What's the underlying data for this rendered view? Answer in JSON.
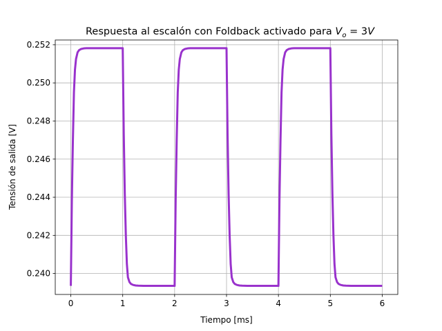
{
  "chart_data": {
    "type": "line",
    "title_text": "Respuesta al escalón con Foldback activado para ",
    "title_math": {
      "var": "V",
      "sub": "o",
      "rest": " = 3",
      "unit": "V"
    },
    "xlabel": "Tiempo [ms]",
    "ylabel": "Tensión de salida [V]",
    "xlim": [
      -0.3,
      6.3
    ],
    "ylim": [
      0.2389,
      0.25225
    ],
    "xticks": [
      0,
      1,
      2,
      3,
      4,
      5,
      6
    ],
    "xtick_labels": [
      "0",
      "1",
      "2",
      "3",
      "4",
      "5",
      "6"
    ],
    "yticks": [
      0.24,
      0.242,
      0.244,
      0.246,
      0.248,
      0.25,
      0.252
    ],
    "ytick_labels": [
      "0.240",
      "0.242",
      "0.244",
      "0.246",
      "0.248",
      "0.250",
      "0.252"
    ],
    "grid": true,
    "color": "#9932CC",
    "series": [
      {
        "x": [
          0,
          0.02,
          0.04,
          0.06,
          0.08,
          0.1,
          0.13,
          0.16,
          0.2,
          0.25,
          0.3,
          0.4,
          0.6,
          0.8,
          1.0,
          1.0,
          1.02,
          1.04,
          1.06,
          1.08,
          1.1,
          1.13,
          1.16,
          1.2,
          1.25,
          1.3,
          1.4,
          1.6,
          1.8,
          2.0,
          2.0,
          2.02,
          2.04,
          2.06,
          2.08,
          2.1,
          2.13,
          2.16,
          2.2,
          2.25,
          2.3,
          2.4,
          2.6,
          2.8,
          3.0,
          3.0,
          3.02,
          3.04,
          3.06,
          3.08,
          3.1,
          3.13,
          3.16,
          3.2,
          3.25,
          3.3,
          3.4,
          3.6,
          3.8,
          4.0,
          4.0,
          4.02,
          4.04,
          4.06,
          4.08,
          4.1,
          4.13,
          4.16,
          4.2,
          4.25,
          4.3,
          4.4,
          4.6,
          4.8,
          5.0,
          5.0,
          5.02,
          5.04,
          5.06,
          5.08,
          5.1,
          5.13,
          5.16,
          5.2,
          5.25,
          5.3,
          5.4,
          5.6,
          5.8,
          6.0
        ],
        "y": [
          0.23935,
          0.24385,
          0.247,
          0.2495,
          0.2507,
          0.25125,
          0.2516,
          0.25172,
          0.25178,
          0.25181,
          0.25182,
          0.25182,
          0.25182,
          0.25182,
          0.25182,
          0.25182,
          0.24732,
          0.24418,
          0.242,
          0.2405,
          0.2398,
          0.23955,
          0.23945,
          0.2394,
          0.23937,
          0.23936,
          0.23935,
          0.23935,
          0.23935,
          0.23935,
          0.23935,
          0.24385,
          0.247,
          0.2495,
          0.2507,
          0.25125,
          0.2516,
          0.25172,
          0.25178,
          0.25181,
          0.25182,
          0.25182,
          0.25182,
          0.25182,
          0.25182,
          0.25182,
          0.24732,
          0.24418,
          0.242,
          0.2405,
          0.2398,
          0.23955,
          0.23945,
          0.2394,
          0.23937,
          0.23936,
          0.23935,
          0.23935,
          0.23935,
          0.23935,
          0.23935,
          0.24385,
          0.247,
          0.2495,
          0.2507,
          0.25125,
          0.2516,
          0.25172,
          0.25178,
          0.25181,
          0.25182,
          0.25182,
          0.25182,
          0.25182,
          0.25182,
          0.25182,
          0.24732,
          0.24418,
          0.242,
          0.2405,
          0.2398,
          0.23955,
          0.23945,
          0.2394,
          0.23937,
          0.23936,
          0.23935,
          0.23935,
          0.23935,
          0.23935
        ]
      }
    ]
  }
}
